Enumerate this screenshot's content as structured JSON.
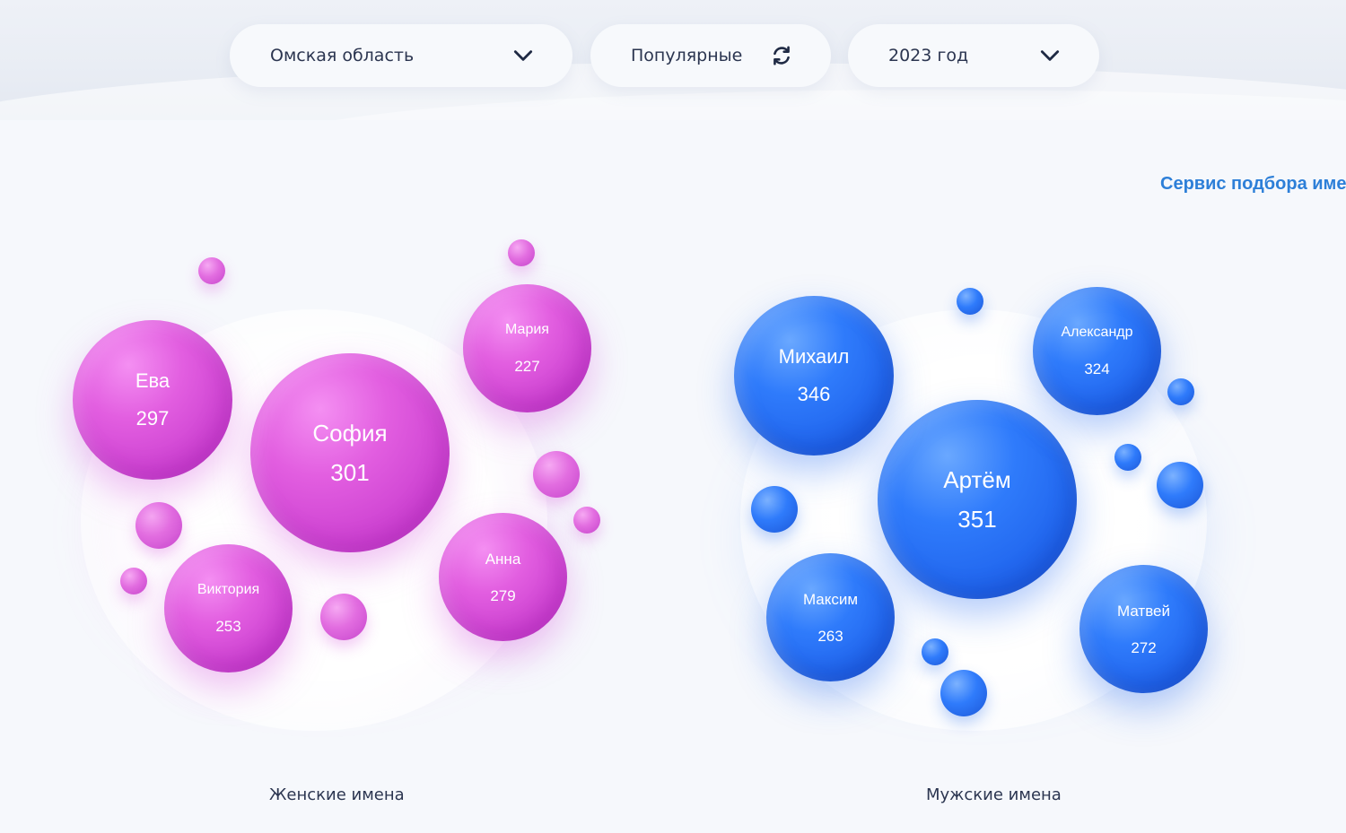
{
  "filters": {
    "region": {
      "value": "Омская область",
      "icon": "chevron-down-icon"
    },
    "sort": {
      "value": "Популярные",
      "icon": "refresh-icon"
    },
    "year": {
      "value": "2023 год",
      "icon": "chevron-down-icon"
    }
  },
  "service_link": "Сервис подбора имени",
  "female": {
    "caption": "Женские имена",
    "color": "#d94fd9",
    "names": [
      {
        "name": "София",
        "count": "301"
      },
      {
        "name": "Ева",
        "count": "297"
      },
      {
        "name": "Анна",
        "count": "279"
      },
      {
        "name": "Виктория",
        "count": "253"
      },
      {
        "name": "Мария",
        "count": "227"
      }
    ]
  },
  "male": {
    "caption": "Мужские имена",
    "color": "#2a6ff5",
    "names": [
      {
        "name": "Артём",
        "count": "351"
      },
      {
        "name": "Михаил",
        "count": "346"
      },
      {
        "name": "Александр",
        "count": "324"
      },
      {
        "name": "Матвей",
        "count": "272"
      },
      {
        "name": "Максим",
        "count": "263"
      }
    ]
  }
}
